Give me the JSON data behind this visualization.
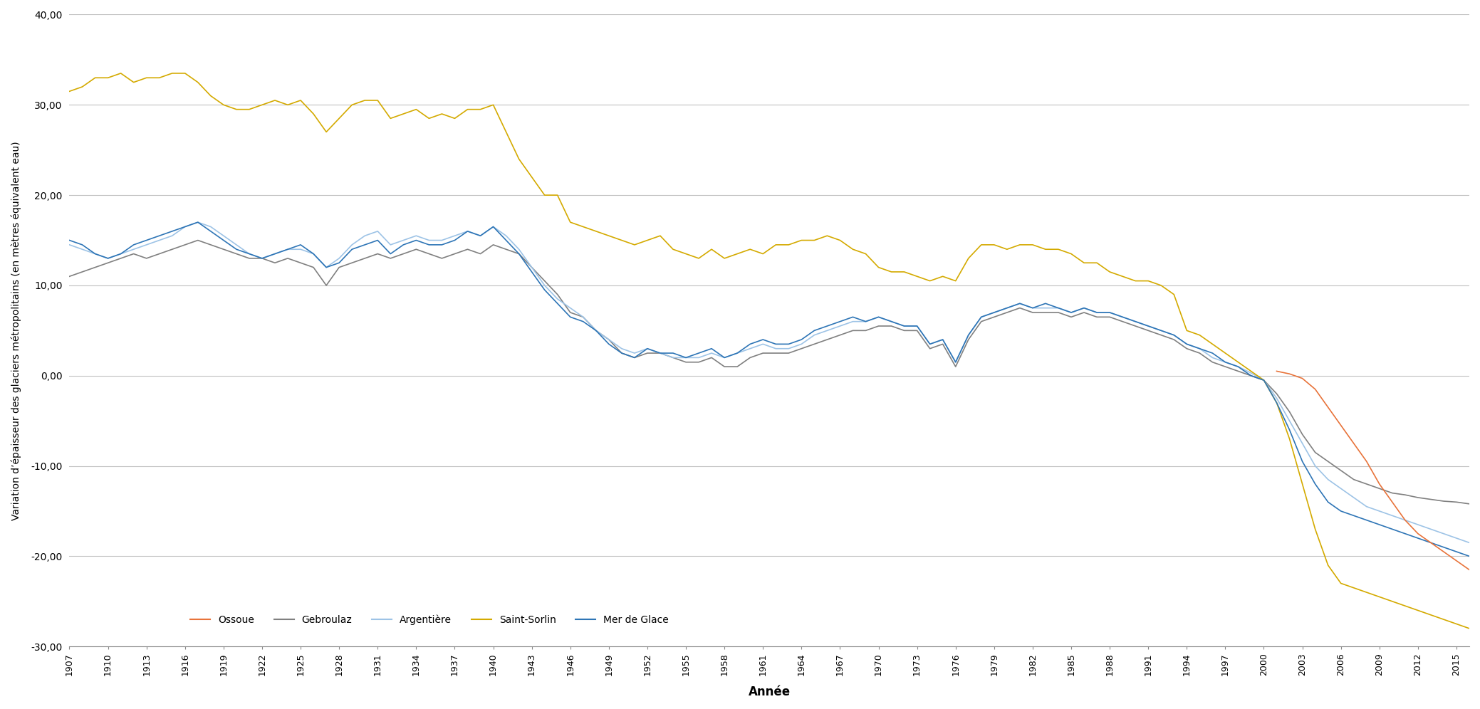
{
  "title": "",
  "ylabel": "Variation d’épaisseur des glaciers métropolitains (en mètres équivalent eau)",
  "xlabel": "Année",
  "ylim": [
    -30,
    40
  ],
  "yticks": [
    -30,
    -20,
    -10,
    0,
    10,
    20,
    30,
    40
  ],
  "ytick_labels": [
    "-30,00",
    "-20,00",
    "-10,00",
    "0,00",
    "10,00",
    "20,00",
    "30,00",
    "40,00"
  ],
  "background_color": "#ffffff",
  "grid_color": "#c0c0c0",
  "series": {
    "Ossoue": {
      "color": "#e8733a",
      "years": [
        2001,
        2002,
        2003,
        2004,
        2005,
        2006,
        2007,
        2008,
        2009,
        2010,
        2011,
        2012,
        2013,
        2014,
        2015,
        2016
      ],
      "values": [
        0.5,
        0.2,
        -0.3,
        -1.5,
        -3.5,
        -5.5,
        -7.5,
        -9.5,
        -12.0,
        -14.0,
        -16.0,
        -17.5,
        -18.5,
        -19.5,
        -20.5,
        -21.5
      ]
    },
    "Gebroulaz": {
      "color": "#808080",
      "years": [
        1907,
        1908,
        1909,
        1910,
        1911,
        1912,
        1913,
        1914,
        1915,
        1916,
        1917,
        1918,
        1919,
        1920,
        1921,
        1922,
        1923,
        1924,
        1925,
        1926,
        1927,
        1928,
        1929,
        1930,
        1931,
        1932,
        1933,
        1934,
        1935,
        1936,
        1937,
        1938,
        1939,
        1940,
        1941,
        1942,
        1943,
        1944,
        1945,
        1946,
        1947,
        1948,
        1949,
        1950,
        1951,
        1952,
        1953,
        1954,
        1955,
        1956,
        1957,
        1958,
        1959,
        1960,
        1961,
        1962,
        1963,
        1964,
        1965,
        1966,
        1967,
        1968,
        1969,
        1970,
        1971,
        1972,
        1973,
        1974,
        1975,
        1976,
        1977,
        1978,
        1979,
        1980,
        1981,
        1982,
        1983,
        1984,
        1985,
        1986,
        1987,
        1988,
        1989,
        1990,
        1991,
        1992,
        1993,
        1994,
        1995,
        1996,
        1997,
        1998,
        1999,
        2000,
        2001,
        2002,
        2003,
        2004,
        2005,
        2006,
        2007,
        2008,
        2009,
        2010,
        2011,
        2012,
        2013,
        2014,
        2015,
        2016
      ],
      "values": [
        11.0,
        11.5,
        12.0,
        12.5,
        13.0,
        13.5,
        13.0,
        13.5,
        14.0,
        14.5,
        15.0,
        14.5,
        14.0,
        13.5,
        13.0,
        13.0,
        12.5,
        13.0,
        12.5,
        12.0,
        10.0,
        12.0,
        12.5,
        13.0,
        13.5,
        13.0,
        13.5,
        14.0,
        13.5,
        13.0,
        13.5,
        14.0,
        13.5,
        14.5,
        14.0,
        13.5,
        12.0,
        10.5,
        9.0,
        7.0,
        6.5,
        5.0,
        4.0,
        2.5,
        2.0,
        2.5,
        2.5,
        2.0,
        1.5,
        1.5,
        2.0,
        1.0,
        1.0,
        2.0,
        2.5,
        2.5,
        2.5,
        3.0,
        3.5,
        4.0,
        4.5,
        5.0,
        5.0,
        5.5,
        5.5,
        5.0,
        5.0,
        3.0,
        3.5,
        1.0,
        4.0,
        6.0,
        6.5,
        7.0,
        7.5,
        7.0,
        7.0,
        7.0,
        6.5,
        7.0,
        6.5,
        6.5,
        6.0,
        5.5,
        5.0,
        4.5,
        4.0,
        3.0,
        2.5,
        1.5,
        1.0,
        0.5,
        0.0,
        -0.5,
        -2.0,
        -4.0,
        -6.5,
        -8.5,
        -9.5,
        -10.5,
        -11.5,
        -12.0,
        -12.5,
        -13.0,
        -13.2,
        -13.5,
        -13.7,
        -13.9,
        -14.0,
        -14.2
      ]
    },
    "Argentière": {
      "color": "#9dc3e6",
      "years": [
        1907,
        1908,
        1909,
        1910,
        1911,
        1912,
        1913,
        1914,
        1915,
        1916,
        1917,
        1918,
        1919,
        1920,
        1921,
        1922,
        1923,
        1924,
        1925,
        1926,
        1927,
        1928,
        1929,
        1930,
        1931,
        1932,
        1933,
        1934,
        1935,
        1936,
        1937,
        1938,
        1939,
        1940,
        1941,
        1942,
        1943,
        1944,
        1945,
        1946,
        1947,
        1948,
        1949,
        1950,
        1951,
        1952,
        1953,
        1954,
        1955,
        1956,
        1957,
        1958,
        1959,
        1960,
        1961,
        1962,
        1963,
        1964,
        1965,
        1966,
        1967,
        1968,
        1969,
        1970,
        1971,
        1972,
        1973,
        1974,
        1975,
        1976,
        1977,
        1978,
        1979,
        1980,
        1981,
        1982,
        1983,
        1984,
        1985,
        1986,
        1987,
        1988,
        1989,
        1990,
        1991,
        1992,
        1993,
        1994,
        1995,
        1996,
        1997,
        1998,
        1999,
        2000,
        2001,
        2002,
        2003,
        2004,
        2005,
        2006,
        2007,
        2008,
        2009,
        2010,
        2011,
        2012,
        2013,
        2014,
        2015,
        2016
      ],
      "values": [
        14.5,
        14.0,
        13.5,
        13.0,
        13.5,
        14.0,
        14.5,
        15.0,
        15.5,
        16.5,
        17.0,
        16.5,
        15.5,
        14.5,
        13.5,
        13.0,
        13.5,
        14.0,
        14.0,
        13.5,
        12.0,
        13.0,
        14.5,
        15.5,
        16.0,
        14.5,
        15.0,
        15.5,
        15.0,
        15.0,
        15.5,
        16.0,
        15.5,
        16.5,
        15.5,
        14.0,
        12.0,
        10.0,
        8.5,
        7.5,
        6.5,
        5.0,
        4.0,
        3.0,
        2.5,
        3.0,
        2.5,
        2.0,
        2.0,
        2.0,
        2.5,
        2.0,
        2.5,
        3.0,
        3.5,
        3.0,
        3.0,
        3.5,
        4.5,
        5.0,
        5.5,
        6.0,
        6.0,
        6.5,
        6.0,
        5.5,
        5.5,
        3.5,
        4.0,
        1.5,
        4.5,
        6.5,
        7.0,
        7.5,
        8.0,
        7.5,
        7.5,
        7.5,
        7.0,
        7.5,
        7.0,
        7.0,
        6.5,
        6.0,
        5.5,
        5.0,
        4.5,
        3.5,
        3.0,
        2.0,
        1.5,
        1.0,
        0.3,
        -0.5,
        -2.5,
        -5.0,
        -7.5,
        -10.0,
        -11.5,
        -12.5,
        -13.5,
        -14.5,
        -15.0,
        -15.5,
        -16.0,
        -16.5,
        -17.0,
        -17.5,
        -18.0,
        -18.5
      ]
    },
    "Saint-Sorlin": {
      "color": "#d4aa00",
      "years": [
        1907,
        1908,
        1909,
        1910,
        1911,
        1912,
        1913,
        1914,
        1915,
        1916,
        1917,
        1918,
        1919,
        1920,
        1921,
        1922,
        1923,
        1924,
        1925,
        1926,
        1927,
        1928,
        1929,
        1930,
        1931,
        1932,
        1933,
        1934,
        1935,
        1936,
        1937,
        1938,
        1939,
        1940,
        1941,
        1942,
        1943,
        1944,
        1945,
        1946,
        1947,
        1948,
        1949,
        1950,
        1951,
        1952,
        1953,
        1954,
        1955,
        1956,
        1957,
        1958,
        1959,
        1960,
        1961,
        1962,
        1963,
        1964,
        1965,
        1966,
        1967,
        1968,
        1969,
        1970,
        1971,
        1972,
        1973,
        1974,
        1975,
        1976,
        1977,
        1978,
        1979,
        1980,
        1981,
        1982,
        1983,
        1984,
        1985,
        1986,
        1987,
        1988,
        1989,
        1990,
        1991,
        1992,
        1993,
        1994,
        1995,
        1996,
        1997,
        1998,
        1999,
        2000,
        2001,
        2002,
        2003,
        2004,
        2005,
        2006,
        2007,
        2008,
        2009,
        2010,
        2011,
        2012,
        2013,
        2014,
        2015,
        2016
      ],
      "values": [
        31.5,
        32.0,
        33.0,
        33.0,
        33.5,
        32.5,
        33.0,
        33.0,
        33.5,
        33.5,
        32.5,
        31.0,
        30.0,
        29.5,
        29.5,
        30.0,
        30.5,
        30.0,
        30.5,
        29.0,
        27.0,
        28.5,
        30.0,
        30.5,
        30.5,
        28.5,
        29.0,
        29.5,
        28.5,
        29.0,
        28.5,
        29.5,
        29.5,
        30.0,
        27.0,
        24.0,
        22.0,
        20.0,
        20.0,
        17.0,
        16.5,
        16.0,
        15.5,
        15.0,
        14.5,
        15.0,
        15.5,
        14.0,
        13.5,
        13.0,
        14.0,
        13.0,
        13.5,
        14.0,
        13.5,
        14.5,
        14.5,
        15.0,
        15.0,
        15.5,
        15.0,
        14.0,
        13.5,
        12.0,
        11.5,
        11.5,
        11.0,
        10.5,
        11.0,
        10.5,
        13.0,
        14.5,
        14.5,
        14.0,
        14.5,
        14.5,
        14.0,
        14.0,
        13.5,
        12.5,
        12.5,
        11.5,
        11.0,
        10.5,
        10.5,
        10.0,
        9.0,
        5.0,
        4.5,
        3.5,
        2.5,
        1.5,
        0.5,
        -0.5,
        -3.0,
        -7.0,
        -12.0,
        -17.0,
        -21.0,
        -23.0,
        -23.5,
        -24.0,
        -24.5,
        -25.0,
        -25.5,
        -26.0,
        -26.5,
        -27.0,
        -27.5,
        -28.0
      ]
    },
    "Mer de Glace": {
      "color": "#2e75b6",
      "years": [
        1907,
        1908,
        1909,
        1910,
        1911,
        1912,
        1913,
        1914,
        1915,
        1916,
        1917,
        1918,
        1919,
        1920,
        1921,
        1922,
        1923,
        1924,
        1925,
        1926,
        1927,
        1928,
        1929,
        1930,
        1931,
        1932,
        1933,
        1934,
        1935,
        1936,
        1937,
        1938,
        1939,
        1940,
        1941,
        1942,
        1943,
        1944,
        1945,
        1946,
        1947,
        1948,
        1949,
        1950,
        1951,
        1952,
        1953,
        1954,
        1955,
        1956,
        1957,
        1958,
        1959,
        1960,
        1961,
        1962,
        1963,
        1964,
        1965,
        1966,
        1967,
        1968,
        1969,
        1970,
        1971,
        1972,
        1973,
        1974,
        1975,
        1976,
        1977,
        1978,
        1979,
        1980,
        1981,
        1982,
        1983,
        1984,
        1985,
        1986,
        1987,
        1988,
        1989,
        1990,
        1991,
        1992,
        1993,
        1994,
        1995,
        1996,
        1997,
        1998,
        1999,
        2000,
        2001,
        2002,
        2003,
        2004,
        2005,
        2006,
        2007,
        2008,
        2009,
        2010,
        2011,
        2012,
        2013,
        2014,
        2015,
        2016
      ],
      "values": [
        15.0,
        14.5,
        13.5,
        13.0,
        13.5,
        14.5,
        15.0,
        15.5,
        16.0,
        16.5,
        17.0,
        16.0,
        15.0,
        14.0,
        13.5,
        13.0,
        13.5,
        14.0,
        14.5,
        13.5,
        12.0,
        12.5,
        14.0,
        14.5,
        15.0,
        13.5,
        14.5,
        15.0,
        14.5,
        14.5,
        15.0,
        16.0,
        15.5,
        16.5,
        15.0,
        13.5,
        11.5,
        9.5,
        8.0,
        6.5,
        6.0,
        5.0,
        3.5,
        2.5,
        2.0,
        3.0,
        2.5,
        2.5,
        2.0,
        2.5,
        3.0,
        2.0,
        2.5,
        3.5,
        4.0,
        3.5,
        3.5,
        4.0,
        5.0,
        5.5,
        6.0,
        6.5,
        6.0,
        6.5,
        6.0,
        5.5,
        5.5,
        3.5,
        4.0,
        1.5,
        4.5,
        6.5,
        7.0,
        7.5,
        8.0,
        7.5,
        8.0,
        7.5,
        7.0,
        7.5,
        7.0,
        7.0,
        6.5,
        6.0,
        5.5,
        5.0,
        4.5,
        3.5,
        3.0,
        2.5,
        1.5,
        1.0,
        0.0,
        -0.5,
        -3.0,
        -6.0,
        -9.5,
        -12.0,
        -14.0,
        -15.0,
        -15.5,
        -16.0,
        -16.5,
        -17.0,
        -17.5,
        -18.0,
        -18.5,
        -19.0,
        -19.5,
        -20.0
      ]
    }
  },
  "xtick_step": 3,
  "legend_labels": [
    "Ossoue",
    "Gebroulaz",
    "Argentière",
    "Saint-Sorlin",
    "Mer de Glace"
  ]
}
